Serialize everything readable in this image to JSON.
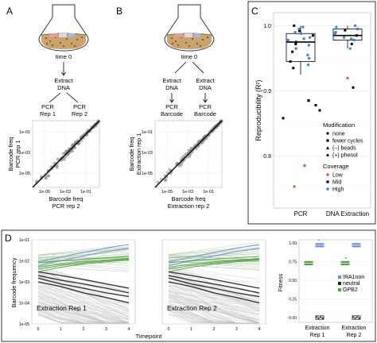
{
  "panels": {
    "A": {
      "letter": "A",
      "flask_time": "time 0",
      "extract_lines": [
        "Extract",
        "DNA"
      ],
      "rep1_lines": [
        "PCR",
        "Rep 1"
      ],
      "rep2_lines": [
        "PCR",
        "Rep 2"
      ],
      "ylabel_lines": [
        "Barcode freq",
        "PCR rep 1"
      ],
      "xlabel_lines": [
        "Barcode freq",
        "PCR rep 2"
      ],
      "yticks": [
        "1e-01",
        "1e-03",
        "1e-05"
      ],
      "xticks": [
        "1e-05",
        "1e-03",
        "1e-01"
      ]
    },
    "B": {
      "letter": "B",
      "flask_time": "time 0",
      "extract1_lines": [
        "Extract",
        "DNA"
      ],
      "extract2_lines": [
        "Extract",
        "DNA"
      ],
      "pcr1_lines": [
        "PCR",
        "Barcode"
      ],
      "pcr2_lines": [
        "PCR",
        "Barcode"
      ],
      "ylabel_lines": [
        "Barcode freq",
        "Extraction rep 1"
      ],
      "xlabel_lines": [
        "Barcode freq",
        "Extraction rep 2"
      ],
      "yticks": [
        "1e-01",
        "1e-03",
        "1e-05"
      ],
      "xticks": [
        "1e-05",
        "1e-03",
        "1e-01"
      ]
    },
    "C": {
      "letter": "C",
      "ylabel": "Reproducibility (R²)",
      "yticks": [
        "1.0",
        "0.9",
        "0.8"
      ],
      "xcategories": [
        "PCR",
        "DNA Extraction"
      ],
      "legend": {
        "modification_title": "Modification",
        "modification_items": [
          "none",
          "fewer cycles",
          "(–) beads",
          "(+) phenol"
        ],
        "coverage_title": "Coverage",
        "coverage_items": [
          "Low",
          "Mid",
          "High"
        ]
      }
    },
    "D": {
      "letter": "D",
      "ylabel": "Barcode frequency",
      "xlabel": "Timepoint",
      "yticks": [
        "1e-01",
        "1e-02",
        "1e-03",
        "1e-04",
        "1e-05"
      ],
      "xticks": [
        "0",
        "1",
        "2",
        "3",
        "4"
      ],
      "rep1_label": "Extraction Rep 1",
      "rep2_label": "Extraction Rep 2",
      "fitness_ylabel": "Fitness",
      "fitness_yticks": [
        "1.00",
        "0.75",
        "0.50",
        "0.25",
        "0.00"
      ],
      "fitness_xcategories": [
        [
          "Extraction",
          "Rep 1"
        ],
        [
          "Extraction",
          "Rep 2"
        ]
      ],
      "fitness_legend": [
        "IRA1non",
        "neutral",
        "GPB2"
      ]
    }
  },
  "colors": {
    "low": "#d9553f",
    "mid": "#000000",
    "high": "#3f7fd9",
    "ira1non": "#6e8fd9",
    "neutral": "#222222",
    "gpb2": "#52a343",
    "panel_border": "#000000",
    "grid": "#e6e6e6"
  },
  "chart_data": [
    {
      "type": "scatter",
      "panel": "C",
      "ylabel": "Reproducibility (R²)",
      "ylim": [
        0.72,
        1.02
      ],
      "categories": [
        "PCR",
        "DNA Extraction"
      ],
      "boxes": [
        {
          "category": "PCR",
          "q1": 0.945,
          "median": 0.975,
          "q3": 0.988,
          "whisker_low": 0.925,
          "whisker_high": 1.0
        },
        {
          "category": "DNA Extraction",
          "q1": 0.978,
          "median": 0.985,
          "q3": 0.995,
          "whisker_low": 0.965,
          "whisker_high": 1.0
        }
      ],
      "points": [
        {
          "category": "PCR",
          "y": 0.858,
          "coverage": "Mid",
          "modification": "none"
        },
        {
          "category": "PCR",
          "y": 0.785,
          "coverage": "Low",
          "modification": "none"
        },
        {
          "category": "PCR",
          "y": 0.753,
          "coverage": "Low",
          "modification": "none"
        },
        {
          "category": "PCR",
          "y": 0.885,
          "coverage": "Mid",
          "modification": "fewer cycles"
        },
        {
          "category": "PCR",
          "y": 0.878,
          "coverage": "Mid",
          "modification": "none"
        },
        {
          "category": "PCR",
          "y": 0.87,
          "coverage": "Mid",
          "modification": "none"
        },
        {
          "category": "PCR",
          "y": 0.935,
          "coverage": "Mid",
          "modification": "none"
        },
        {
          "category": "PCR",
          "y": 0.955,
          "coverage": "High",
          "modification": "none"
        },
        {
          "category": "PCR",
          "y": 0.96,
          "coverage": "Mid",
          "modification": "none"
        },
        {
          "category": "PCR",
          "y": 0.965,
          "coverage": "High",
          "modification": "none"
        },
        {
          "category": "PCR",
          "y": 0.97,
          "coverage": "High",
          "modification": "none"
        },
        {
          "category": "PCR",
          "y": 0.975,
          "coverage": "Mid",
          "modification": "none"
        },
        {
          "category": "PCR",
          "y": 0.98,
          "coverage": "High",
          "modification": "none"
        },
        {
          "category": "PCR",
          "y": 0.982,
          "coverage": "High",
          "modification": "none"
        },
        {
          "category": "PCR",
          "y": 0.985,
          "coverage": "Mid",
          "modification": "none"
        },
        {
          "category": "PCR",
          "y": 0.988,
          "coverage": "High",
          "modification": "none"
        },
        {
          "category": "PCR",
          "y": 0.99,
          "coverage": "High",
          "modification": "none"
        },
        {
          "category": "PCR",
          "y": 0.992,
          "coverage": "Mid",
          "modification": "none"
        },
        {
          "category": "PCR",
          "y": 0.995,
          "coverage": "High",
          "modification": "none"
        },
        {
          "category": "PCR",
          "y": 0.998,
          "coverage": "High",
          "modification": "none"
        },
        {
          "category": "PCR",
          "y": 1.0,
          "coverage": "Mid",
          "modification": "none"
        },
        {
          "category": "PCR",
          "y": 0.95,
          "coverage": "High",
          "modification": "none"
        },
        {
          "category": "PCR",
          "y": 0.945,
          "coverage": "Mid",
          "modification": "none"
        },
        {
          "category": "PCR",
          "y": 0.94,
          "coverage": "High",
          "modification": "none"
        },
        {
          "category": "PCR",
          "y": 0.978,
          "coverage": "High",
          "modification": "none"
        },
        {
          "category": "PCR",
          "y": 0.972,
          "coverage": "Mid",
          "modification": "none"
        },
        {
          "category": "DNA Extraction",
          "y": 0.92,
          "coverage": "Low",
          "modification": "(–) beads"
        },
        {
          "category": "DNA Extraction",
          "y": 0.905,
          "coverage": "Mid",
          "modification": "none"
        },
        {
          "category": "DNA Extraction",
          "y": 0.965,
          "coverage": "High",
          "modification": "none"
        },
        {
          "category": "DNA Extraction",
          "y": 0.972,
          "coverage": "Mid",
          "modification": "none"
        },
        {
          "category": "DNA Extraction",
          "y": 0.978,
          "coverage": "High",
          "modification": "none"
        },
        {
          "category": "DNA Extraction",
          "y": 0.982,
          "coverage": "High",
          "modification": "none"
        },
        {
          "category": "DNA Extraction",
          "y": 0.985,
          "coverage": "Mid",
          "modification": "none"
        },
        {
          "category": "DNA Extraction",
          "y": 0.988,
          "coverage": "High",
          "modification": "none"
        },
        {
          "category": "DNA Extraction",
          "y": 0.99,
          "coverage": "High",
          "modification": "none"
        },
        {
          "category": "DNA Extraction",
          "y": 0.993,
          "coverage": "Mid",
          "modification": "none"
        },
        {
          "category": "DNA Extraction",
          "y": 0.995,
          "coverage": "High",
          "modification": "none"
        },
        {
          "category": "DNA Extraction",
          "y": 0.998,
          "coverage": "High",
          "modification": "none"
        },
        {
          "category": "DNA Extraction",
          "y": 1.0,
          "coverage": "High",
          "modification": "none"
        },
        {
          "category": "DNA Extraction",
          "y": 0.98,
          "coverage": "High",
          "modification": "none"
        }
      ]
    },
    {
      "type": "line",
      "panel": "D",
      "subplot": "Extraction Rep 1",
      "x": [
        0,
        1,
        2,
        3,
        4
      ],
      "yscale": "log",
      "ylim": [
        1e-05,
        0.1
      ],
      "series": [
        {
          "group": "IRA1non",
          "values": [
            0.009,
            0.015,
            0.025,
            0.04,
            0.06
          ]
        },
        {
          "group": "IRA1non",
          "values": [
            0.006,
            0.01,
            0.017,
            0.028,
            0.04
          ]
        },
        {
          "group": "GPB2",
          "values": [
            0.008,
            0.01,
            0.012,
            0.014,
            0.016
          ]
        },
        {
          "group": "GPB2",
          "values": [
            0.005,
            0.007,
            0.009,
            0.011,
            0.013
          ]
        },
        {
          "group": "GPB2",
          "values": [
            0.004,
            0.006,
            0.008,
            0.01,
            0.012
          ]
        },
        {
          "group": "GPB2",
          "values": [
            0.003,
            0.005,
            0.007,
            0.009,
            0.011
          ]
        },
        {
          "group": "neutral",
          "values": [
            0.003,
            0.002,
            0.0013,
            0.0008,
            0.0005
          ]
        },
        {
          "group": "neutral",
          "values": [
            0.002,
            0.0012,
            0.0008,
            0.0005,
            0.0003
          ]
        },
        {
          "group": "neutral",
          "values": [
            0.0015,
            0.0008,
            0.0005,
            0.0003,
            0.0002
          ]
        },
        {
          "group": "neutral",
          "values": [
            0.001,
            0.0006,
            0.0003,
            0.00018,
            0.0001
          ]
        }
      ]
    },
    {
      "type": "line",
      "panel": "D",
      "subplot": "Extraction Rep 2",
      "x": [
        0,
        1,
        2,
        3,
        4
      ],
      "yscale": "log",
      "ylim": [
        1e-05,
        0.1
      ],
      "series": [
        {
          "group": "IRA1non",
          "values": [
            0.009,
            0.015,
            0.025,
            0.04,
            0.06
          ]
        },
        {
          "group": "IRA1non",
          "values": [
            0.006,
            0.01,
            0.017,
            0.028,
            0.04
          ]
        },
        {
          "group": "GPB2",
          "values": [
            0.008,
            0.01,
            0.012,
            0.014,
            0.016
          ]
        },
        {
          "group": "GPB2",
          "values": [
            0.005,
            0.007,
            0.009,
            0.011,
            0.013
          ]
        },
        {
          "group": "GPB2",
          "values": [
            0.004,
            0.006,
            0.008,
            0.01,
            0.012
          ]
        },
        {
          "group": "GPB2",
          "values": [
            0.003,
            0.005,
            0.007,
            0.009,
            0.011
          ]
        },
        {
          "group": "neutral",
          "values": [
            0.003,
            0.002,
            0.0013,
            0.0008,
            0.0005
          ]
        },
        {
          "group": "neutral",
          "values": [
            0.002,
            0.0012,
            0.0008,
            0.0005,
            0.0003
          ]
        },
        {
          "group": "neutral",
          "values": [
            0.0015,
            0.0008,
            0.0005,
            0.0003,
            0.0002
          ]
        },
        {
          "group": "neutral",
          "values": [
            0.001,
            0.0006,
            0.0003,
            0.00018,
            0.0001
          ]
        }
      ]
    },
    {
      "type": "scatter",
      "panel": "D",
      "subplot": "Fitness",
      "ylabel": "Fitness",
      "ylim": [
        0,
        1.05
      ],
      "categories": [
        "Extraction Rep 1",
        "Extraction Rep 2"
      ],
      "groups": [
        {
          "name": "IRA1non",
          "values": [
            0.97,
            0.97
          ]
        },
        {
          "name": "GPB2",
          "values": [
            0.73,
            0.73
          ]
        },
        {
          "name": "neutral",
          "values": [
            0.0,
            0.0
          ]
        }
      ]
    }
  ]
}
